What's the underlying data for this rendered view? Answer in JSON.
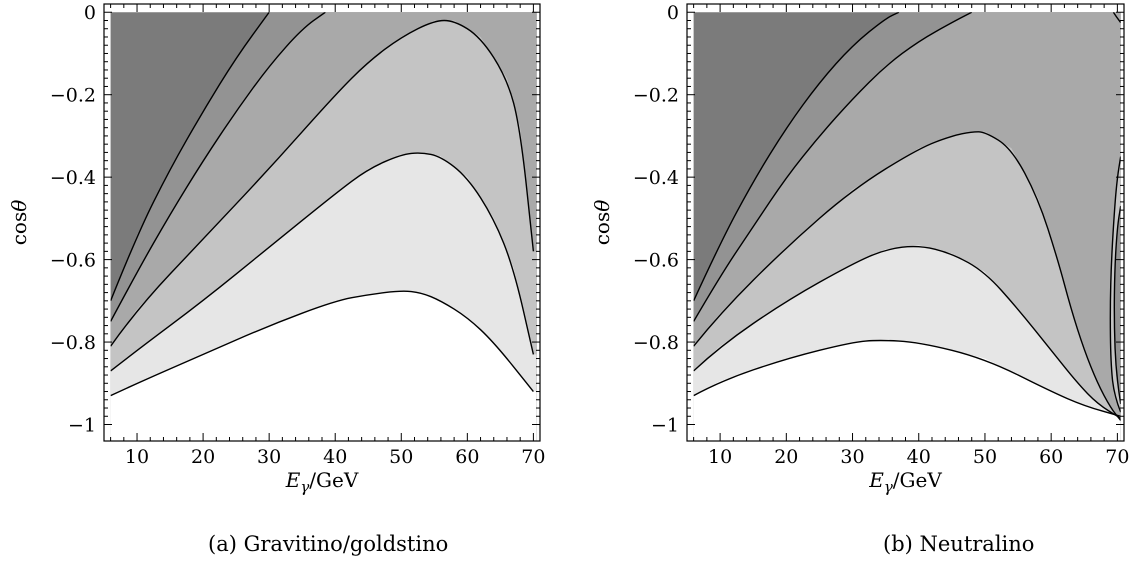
{
  "chart_data": [
    {
      "type": "contour",
      "caption": "(a) Gravitino/goldstino",
      "xlabel": "Eγ/GeV",
      "ylabel": "cosθ",
      "xlim": [
        5,
        71
      ],
      "ylim": [
        -1.04,
        0.02
      ],
      "xticks": [
        10,
        20,
        30,
        40,
        50,
        60,
        70
      ],
      "xtick_labels": [
        "10",
        "20",
        "30",
        "40",
        "50",
        "60",
        "70"
      ],
      "yticks": [
        0,
        -0.2,
        -0.4,
        -0.6,
        -0.8,
        -1
      ],
      "ytick_labels": [
        "0",
        "−0.2",
        "−0.4",
        "−0.6",
        "−0.8",
        "−1"
      ],
      "contours": [
        {
          "points": [
            [
              6,
              -0.7
            ],
            [
              10,
              -0.54
            ],
            [
              15,
              -0.38
            ],
            [
              20,
              -0.24
            ],
            [
              25,
              -0.11
            ],
            [
              30,
              0
            ]
          ]
        },
        {
          "points": [
            [
              6,
              -0.75
            ],
            [
              10,
              -0.63
            ],
            [
              15,
              -0.49
            ],
            [
              20,
              -0.36
            ],
            [
              25,
              -0.24
            ],
            [
              30,
              -0.13
            ],
            [
              35,
              -0.04
            ],
            [
              38.5,
              0
            ]
          ]
        },
        {
          "points": [
            [
              6,
              -0.81
            ],
            [
              10,
              -0.72
            ],
            [
              20,
              -0.55
            ],
            [
              30,
              -0.38
            ],
            [
              40,
              -0.2
            ],
            [
              45,
              -0.12
            ],
            [
              50,
              -0.06
            ],
            [
              55,
              -0.02
            ],
            [
              58,
              -0.02
            ],
            [
              62,
              -0.06
            ],
            [
              66,
              -0.16
            ],
            [
              68,
              -0.28
            ],
            [
              70,
              -0.58
            ]
          ]
        },
        {
          "points": [
            [
              6,
              -0.87
            ],
            [
              10,
              -0.82
            ],
            [
              20,
              -0.7
            ],
            [
              30,
              -0.57
            ],
            [
              40,
              -0.44
            ],
            [
              45,
              -0.38
            ],
            [
              50,
              -0.345
            ],
            [
              53,
              -0.34
            ],
            [
              56,
              -0.35
            ],
            [
              60,
              -0.4
            ],
            [
              64,
              -0.5
            ],
            [
              67,
              -0.62
            ],
            [
              70,
              -0.83
            ]
          ]
        },
        {
          "points": [
            [
              6,
              -0.93
            ],
            [
              10,
              -0.9
            ],
            [
              20,
              -0.83
            ],
            [
              30,
              -0.76
            ],
            [
              40,
              -0.7
            ],
            [
              45,
              -0.685
            ],
            [
              50,
              -0.675
            ],
            [
              53,
              -0.68
            ],
            [
              56,
              -0.7
            ],
            [
              60,
              -0.74
            ],
            [
              64,
              -0.8
            ],
            [
              70,
              -0.92
            ]
          ]
        }
      ]
    },
    {
      "type": "contour",
      "caption": "(b) Neutralino",
      "xlabel": "Eγ/GeV",
      "ylabel": "cosθ",
      "xlim": [
        5,
        71
      ],
      "ylim": [
        -1.04,
        0.02
      ],
      "xticks": [
        10,
        20,
        30,
        40,
        50,
        60,
        70
      ],
      "xtick_labels": [
        "10",
        "20",
        "30",
        "40",
        "50",
        "60",
        "70"
      ],
      "yticks": [
        0,
        -0.2,
        -0.4,
        -0.6,
        -0.8,
        -1
      ],
      "ytick_labels": [
        "0",
        "−0.2",
        "−0.4",
        "−0.6",
        "−0.8",
        "−1"
      ],
      "contours": [
        {
          "points": [
            [
              6,
              -0.7
            ],
            [
              10,
              -0.56
            ],
            [
              15,
              -0.41
            ],
            [
              20,
              -0.28
            ],
            [
              25,
              -0.17
            ],
            [
              30,
              -0.08
            ],
            [
              35,
              -0.015
            ],
            [
              37,
              0
            ]
          ]
        },
        {
          "points": [
            [
              6,
              -0.75
            ],
            [
              10,
              -0.64
            ],
            [
              15,
              -0.52
            ],
            [
              20,
              -0.4
            ],
            [
              25,
              -0.3
            ],
            [
              30,
              -0.21
            ],
            [
              35,
              -0.13
            ],
            [
              40,
              -0.07
            ],
            [
              45,
              -0.025
            ],
            [
              48,
              0
            ]
          ]
        },
        {
          "points": [
            [
              6,
              -0.81
            ],
            [
              10,
              -0.73
            ],
            [
              20,
              -0.57
            ],
            [
              30,
              -0.43
            ],
            [
              40,
              -0.33
            ],
            [
              45,
              -0.3
            ],
            [
              48,
              -0.29
            ],
            [
              50,
              -0.29
            ],
            [
              54,
              -0.33
            ],
            [
              58,
              -0.45
            ],
            [
              61,
              -0.6
            ],
            [
              63,
              -0.72
            ],
            [
              65,
              -0.82
            ],
            [
              67,
              -0.9
            ],
            [
              69,
              -0.96
            ],
            [
              70.5,
              -0.99
            ]
          ]
        },
        {
          "points": [
            [
              6,
              -0.87
            ],
            [
              10,
              -0.81
            ],
            [
              20,
              -0.7
            ],
            [
              30,
              -0.61
            ],
            [
              35,
              -0.575
            ],
            [
              40,
              -0.565
            ],
            [
              45,
              -0.585
            ],
            [
              50,
              -0.63
            ],
            [
              55,
              -0.72
            ],
            [
              60,
              -0.82
            ],
            [
              64,
              -0.9
            ],
            [
              67,
              -0.95
            ],
            [
              70.5,
              -0.985
            ]
          ]
        },
        {
          "points": [
            [
              6,
              -0.93
            ],
            [
              10,
              -0.895
            ],
            [
              20,
              -0.84
            ],
            [
              30,
              -0.8
            ],
            [
              34,
              -0.795
            ],
            [
              40,
              -0.8
            ],
            [
              50,
              -0.84
            ],
            [
              60,
              -0.92
            ],
            [
              65,
              -0.955
            ],
            [
              70.5,
              -0.98
            ]
          ]
        },
        {
          "points": [
            [
              70.5,
              -0.97
            ],
            [
              69.5,
              -0.93
            ],
            [
              69,
              -0.85
            ],
            [
              68.9,
              -0.72
            ],
            [
              69.1,
              -0.6
            ],
            [
              69.6,
              -0.47
            ],
            [
              70,
              -0.4
            ],
            [
              70.5,
              -0.35
            ]
          ]
        },
        {
          "points": [
            [
              70.5,
              -0.95
            ],
            [
              69.8,
              -0.88
            ],
            [
              69.5,
              -0.75
            ],
            [
              69.6,
              -0.62
            ],
            [
              70,
              -0.52
            ],
            [
              70.5,
              -0.47
            ]
          ]
        },
        {
          "points": [
            [
              69.4,
              0
            ],
            [
              69.8,
              -0.01
            ],
            [
              70.5,
              -0.025
            ]
          ]
        }
      ]
    }
  ]
}
